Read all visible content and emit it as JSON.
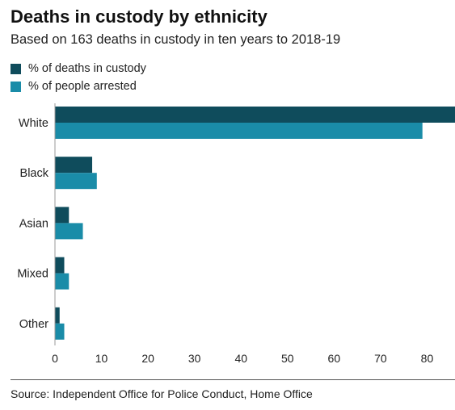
{
  "header": {
    "title": "Deaths in custody by ethnicity",
    "subtitle": "Based on 163 deaths in custody in ten years to 2018-19"
  },
  "legend": [
    {
      "label": "% of deaths in custody",
      "color": "#0f4c5c"
    },
    {
      "label": "% of people arrested",
      "color": "#1a8ca8"
    }
  ],
  "chart_data": {
    "type": "bar",
    "orientation": "horizontal",
    "categories": [
      "White",
      "Black",
      "Asian",
      "Mixed",
      "Other"
    ],
    "series": [
      {
        "name": "% of deaths in custody",
        "values": [
          86,
          8,
          3,
          2,
          1
        ],
        "color": "#0f4c5c"
      },
      {
        "name": "% of people arrested",
        "values": [
          79,
          9,
          6,
          3,
          2
        ],
        "color": "#1a8ca8"
      }
    ],
    "xticks": [
      0,
      10,
      20,
      30,
      40,
      50,
      60,
      70,
      80
    ],
    "xlim": [
      0,
      86
    ],
    "grid": false,
    "legend_position": "top-left"
  },
  "footer": {
    "source": "Source: Independent Office for Police Conduct, Home Office"
  }
}
